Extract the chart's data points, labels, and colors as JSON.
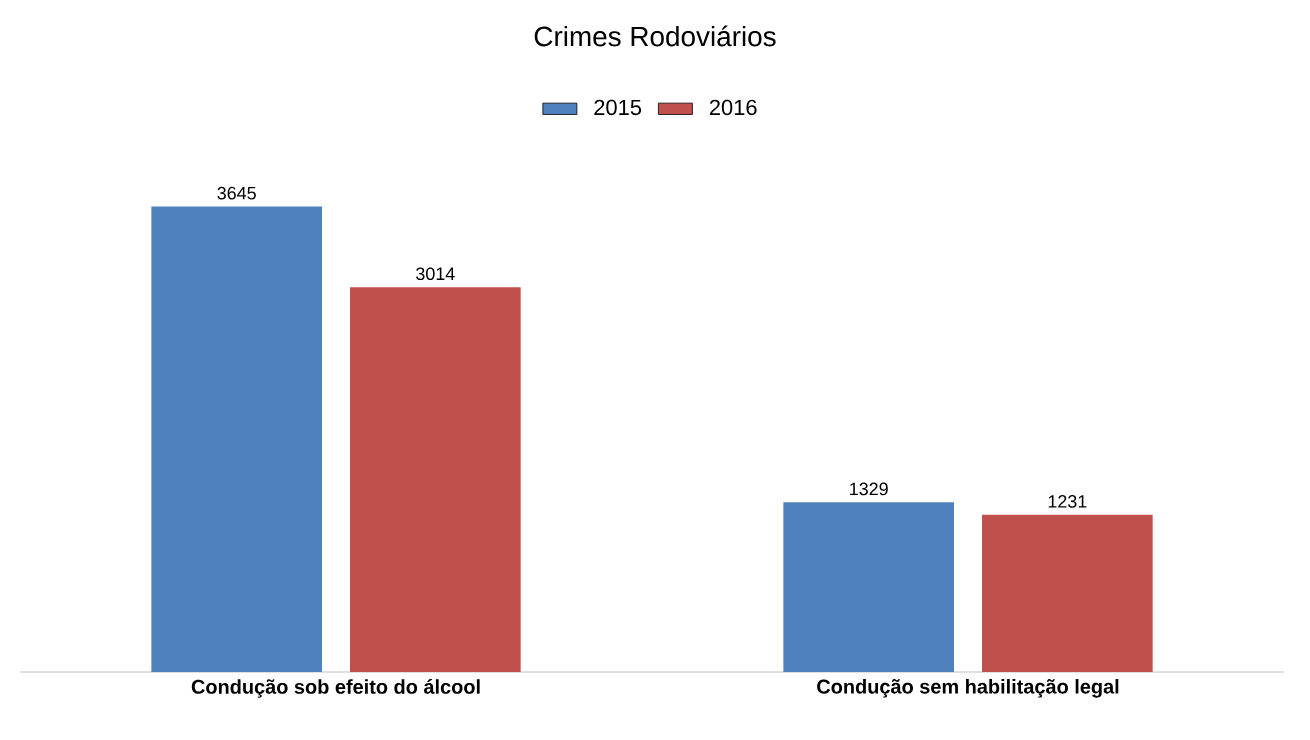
{
  "chart_data": {
    "type": "bar",
    "title": "Crimes Rodoviários",
    "categories": [
      "Condução sob efeito do álcool",
      "Condução sem  habilitação legal"
    ],
    "series": [
      {
        "name": "2015",
        "color": "#4f81bd",
        "values": [
          3645,
          1329
        ]
      },
      {
        "name": "2016",
        "color": "#c0504d",
        "values": [
          3014,
          1231
        ]
      }
    ],
    "data_labels": true,
    "legend": "top"
  }
}
